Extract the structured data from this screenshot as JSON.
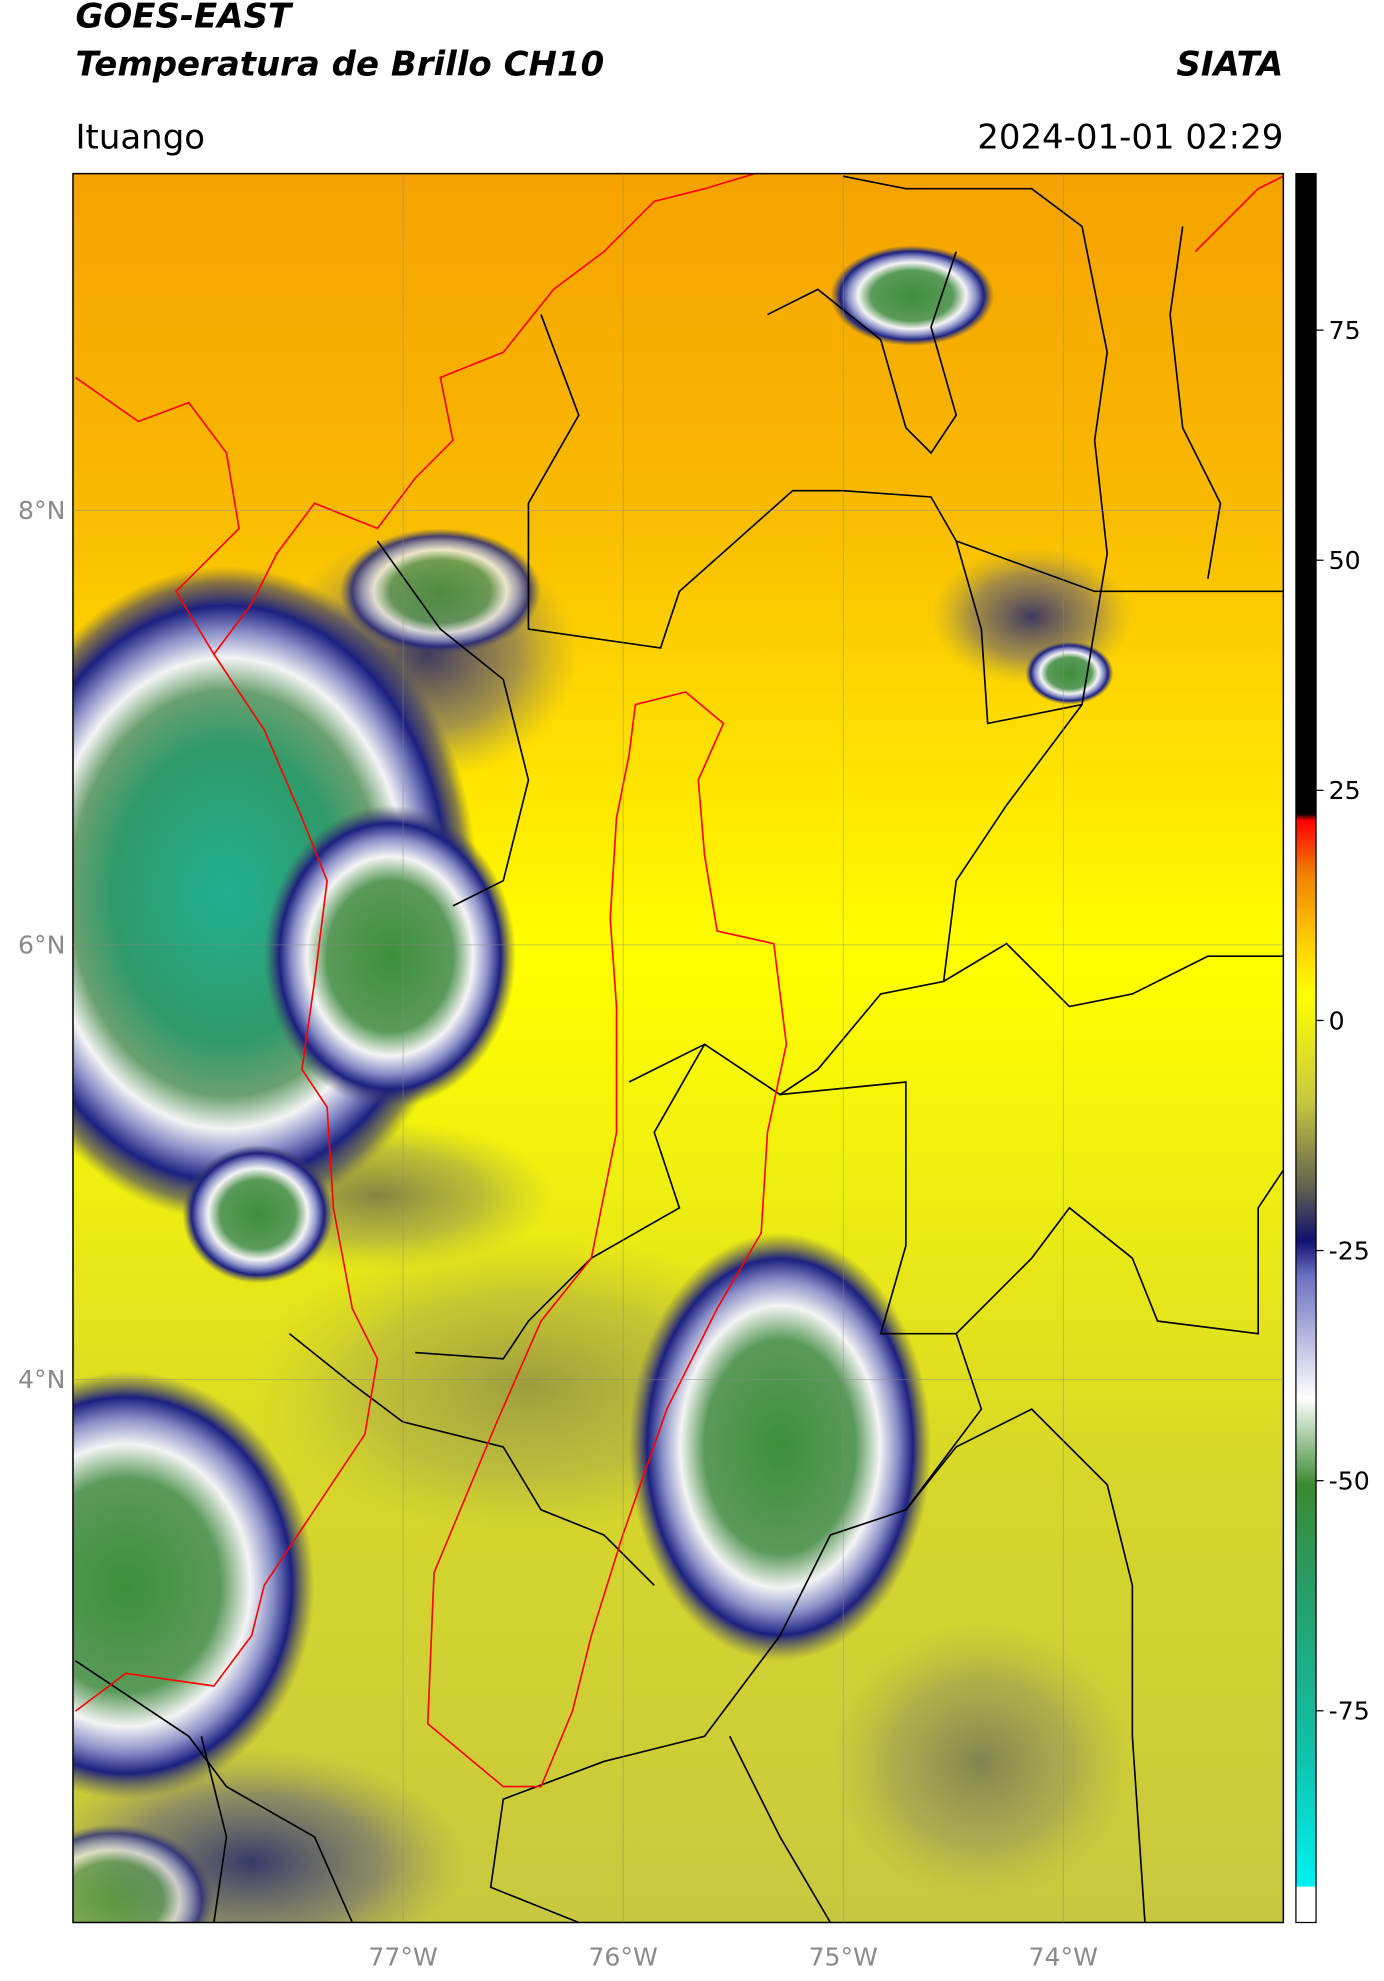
{
  "header": {
    "title": "GOES-EAST",
    "subtitle": "Temperatura de Brillo CH10",
    "agency": "SIATA",
    "region": "Ituango",
    "datetime": "2024-01-01 02:29"
  },
  "map": {
    "xlim": [
      -78.5,
      -73
    ],
    "ylim": [
      1.5,
      9.55
    ],
    "xticks": [
      {
        "value": -77,
        "label": "77°W"
      },
      {
        "value": -76,
        "label": "76°W"
      },
      {
        "value": -75,
        "label": "75°W"
      },
      {
        "value": -74,
        "label": "74°W"
      }
    ],
    "yticks": [
      {
        "value": 4,
        "label": "4°N"
      },
      {
        "value": 6,
        "label": "6°N"
      },
      {
        "value": 8,
        "label": "8°N"
      }
    ]
  },
  "colorbar": {
    "lim": [
      -98,
      92
    ],
    "ticks": [
      -75,
      -50,
      -25,
      0,
      25,
      50,
      75
    ]
  }
}
